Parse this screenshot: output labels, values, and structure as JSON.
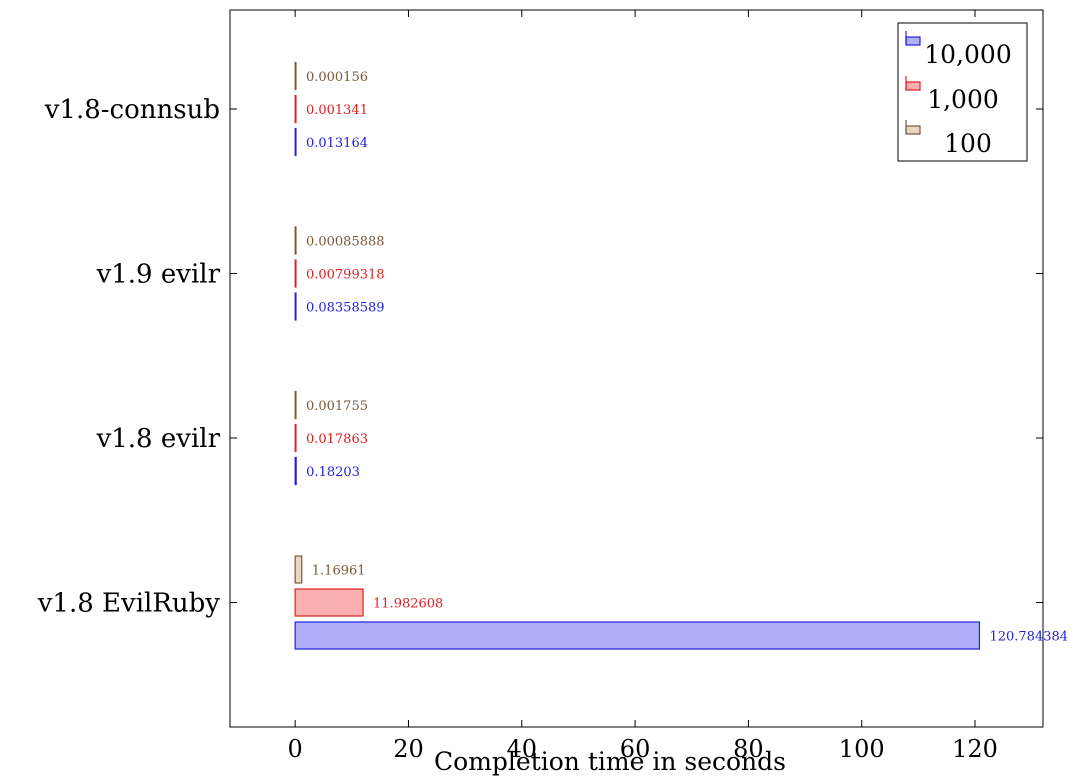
{
  "chart_data": {
    "type": "bar",
    "orientation": "horizontal",
    "categories": [
      "v1.8-connsub",
      "v1.9 evilr",
      "v1.8 evilr",
      "v1.8 EvilRuby"
    ],
    "series": [
      {
        "name": "10,000",
        "color": "#2222dd",
        "fill": "#b0b0f8",
        "values": [
          0.013164,
          0.08358589,
          0.18203,
          120.784384
        ],
        "labels": [
          "0.013164",
          "0.08358589",
          "0.18203",
          "120.784384"
        ]
      },
      {
        "name": "1,000",
        "color": "#e02020",
        "fill": "#fbb0b0",
        "values": [
          0.001341,
          0.00799318,
          0.017863,
          11.982608
        ],
        "labels": [
          "0.001341",
          "0.00799318",
          "0.017863",
          "11.982608"
        ]
      },
      {
        "name": "100",
        "color": "#7a5a3a",
        "fill": "#e8d6c0",
        "values": [
          0.000156,
          0.00085888,
          0.001755,
          1.16961
        ],
        "labels": [
          "0.000156",
          "0.00085888",
          "0.001755",
          "1.16961"
        ]
      }
    ],
    "xlabel": "Completion time in seconds",
    "xlim": [
      -11.5,
      132
    ],
    "xticks": [
      0,
      20,
      40,
      60,
      80,
      100,
      120
    ],
    "xtick_labels": [
      "0",
      "20",
      "40",
      "60",
      "80",
      "100",
      "120"
    ],
    "legend_position": "top-right",
    "grid": false
  }
}
